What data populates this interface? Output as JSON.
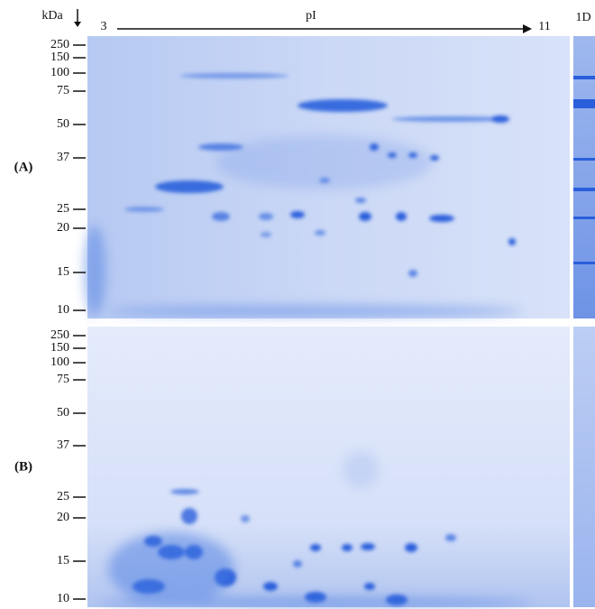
{
  "header": {
    "unit": "kDa",
    "pi_start": "3",
    "pi_label": "pI",
    "pi_end": "11",
    "lane": "1D"
  },
  "panels": [
    {
      "label": "(A)",
      "markers": [
        "250",
        "150",
        "100",
        "75",
        "50",
        "37",
        "25",
        "20",
        "15",
        "10"
      ]
    },
    {
      "label": "(B)",
      "markers": [
        "250",
        "150",
        "100",
        "75",
        "50",
        "37",
        "25",
        "20",
        "15",
        "10"
      ]
    }
  ]
}
